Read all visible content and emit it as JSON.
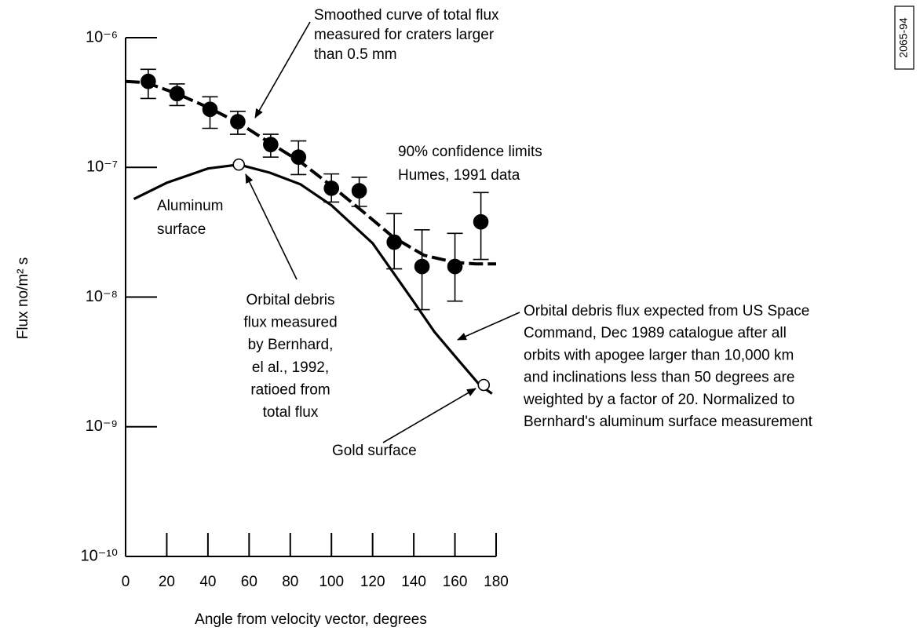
{
  "chart_data": {
    "type": "scatter",
    "yscale": "log",
    "xlabel": "Angle from velocity vector, degrees",
    "ylabel": "Flux no/m² s",
    "figure_id": "2065-94",
    "xlim": [
      0,
      180
    ],
    "xticks": [
      0,
      20,
      40,
      60,
      80,
      100,
      120,
      140,
      160,
      180
    ],
    "ylim": [
      1e-10,
      1e-06
    ],
    "yticks": [
      {
        "value": 1e-10,
        "label": "10⁻¹⁰"
      },
      {
        "value": 1e-09,
        "label": "10⁻⁹"
      },
      {
        "value": 1e-08,
        "label": "10⁻⁸"
      },
      {
        "value": 1e-07,
        "label": "10⁻⁷"
      },
      {
        "value": 1e-06,
        "label": "10⁻⁶"
      }
    ],
    "grid": false,
    "series": [
      {
        "type": "scatter",
        "marker": "filled",
        "color": "#000000",
        "x": [
          11,
          25,
          41,
          54.5,
          70.5,
          84,
          100,
          113.5,
          130.5,
          144,
          160,
          172.6
        ],
        "values": [
          4.6e-07,
          3.7e-07,
          2.8e-07,
          2.25e-07,
          1.5e-07,
          1.2e-07,
          6.9e-08,
          6.6e-08,
          2.65e-08,
          1.72e-08,
          1.72e-08,
          3.8e-08
        ],
        "upper": [
          5.7e-07,
          4.4e-07,
          3.5e-07,
          2.7e-07,
          1.8e-07,
          1.6e-07,
          8.9e-08,
          8.4e-08,
          4.4e-08,
          3.3e-08,
          3.1e-08,
          6.4e-08
        ],
        "lower": [
          3.4e-07,
          3e-07,
          2e-07,
          1.8e-07,
          1.2e-07,
          8.8e-08,
          5.4e-08,
          5e-08,
          1.65e-08,
          8e-09,
          9.3e-09,
          1.95e-08
        ]
      },
      {
        "type": "line",
        "dashed": true,
        "color": "#000000",
        "x": [
          0,
          10,
          25,
          40,
          55,
          70,
          85,
          100,
          115,
          130,
          145,
          160,
          170,
          180
        ],
        "values": [
          4.6e-07,
          4.5e-07,
          3.7e-07,
          2.9e-07,
          2.2e-07,
          1.55e-07,
          1.1e-07,
          7.2e-08,
          4.6e-08,
          2.9e-08,
          2.1e-08,
          1.85e-08,
          1.8e-08,
          1.8e-08
        ]
      },
      {
        "type": "line",
        "dashed": false,
        "color": "#000000",
        "x": [
          4,
          20,
          40,
          55,
          70,
          85,
          100,
          120,
          140,
          150,
          160,
          172,
          178
        ],
        "values": [
          5.7e-08,
          7.6e-08,
          9.8e-08,
          1.05e-07,
          9.1e-08,
          7.4e-08,
          5.1e-08,
          2.6e-08,
          9.2e-09,
          5.4e-09,
          3.5e-09,
          2.1e-09,
          1.8e-09
        ]
      },
      {
        "type": "scatter",
        "marker": "open",
        "color": "#000000",
        "x": [
          55,
          174
        ],
        "values": [
          1.05e-07,
          2.1e-09
        ]
      }
    ],
    "annotations": [
      {
        "lines": [
          "Smoothed curve of total flux",
          "measured for craters larger",
          "than 0.5 mm"
        ]
      },
      {
        "lines": [
          "90% confidence limits",
          "Humes, 1991 data"
        ]
      },
      {
        "lines": [
          "Aluminum",
          "surface"
        ]
      },
      {
        "lines": [
          "Orbital debris",
          "flux measured",
          "by Bernhard,",
          "el al., 1992,",
          "ratioed from",
          "total flux"
        ]
      },
      {
        "lines": [
          "Orbital debris flux expected from US Space",
          "Command, Dec 1989 catalogue after all",
          "orbits with apogee larger than 10,000 km",
          "and inclinations less than 50 degrees are",
          "weighted by a factor of 20. Normalized to",
          "Bernhard's aluminum surface measurement"
        ]
      },
      {
        "lines": [
          "Gold surface"
        ]
      }
    ]
  }
}
